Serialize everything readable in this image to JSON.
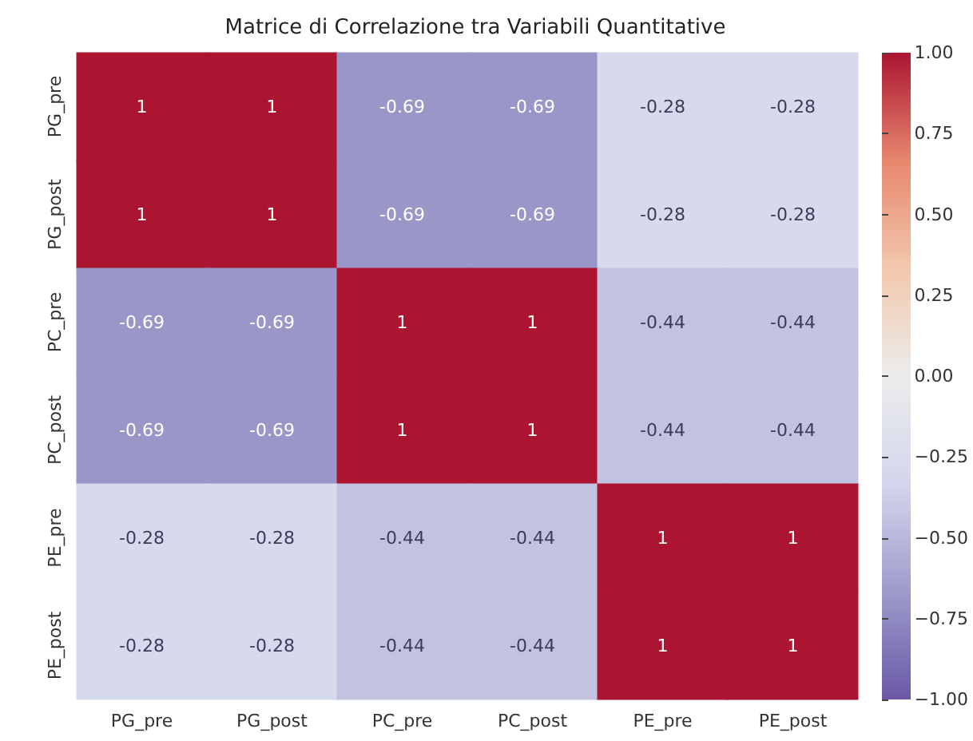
{
  "chart_data": {
    "type": "heatmap",
    "title": "Matrice di Correlazione tra Variabili Quantitative",
    "categories": [
      "PG_pre",
      "PG_post",
      "PC_pre",
      "PC_post",
      "PE_pre",
      "PE_post"
    ],
    "y_categories": [
      "PG_pre",
      "PG_post",
      "PC_pre",
      "PC_post",
      "PE_pre",
      "PE_post"
    ],
    "cells": [
      [
        1,
        1,
        -0.69,
        -0.69,
        -0.28,
        -0.28
      ],
      [
        1,
        1,
        -0.69,
        -0.69,
        -0.28,
        -0.28
      ],
      [
        -0.69,
        -0.69,
        1,
        1,
        -0.44,
        -0.44
      ],
      [
        -0.69,
        -0.69,
        1,
        1,
        -0.44,
        -0.44
      ],
      [
        -0.28,
        -0.28,
        -0.44,
        -0.44,
        1,
        1
      ],
      [
        -0.28,
        -0.28,
        -0.44,
        -0.44,
        1,
        1
      ]
    ],
    "data_labels": true,
    "clim": [
      -1,
      1
    ],
    "cticks": [
      {
        "value": -1,
        "label": "−1.00"
      },
      {
        "value": -0.75,
        "label": "−0.75"
      },
      {
        "value": -0.5,
        "label": "−0.50"
      },
      {
        "value": -0.25,
        "label": "−0.25"
      },
      {
        "value": 0,
        "label": "0.00"
      },
      {
        "value": 0.25,
        "label": "0.25"
      },
      {
        "value": 0.5,
        "label": "0.50"
      },
      {
        "value": 0.75,
        "label": "0.75"
      },
      {
        "value": 1,
        "label": "1.00"
      }
    ]
  }
}
